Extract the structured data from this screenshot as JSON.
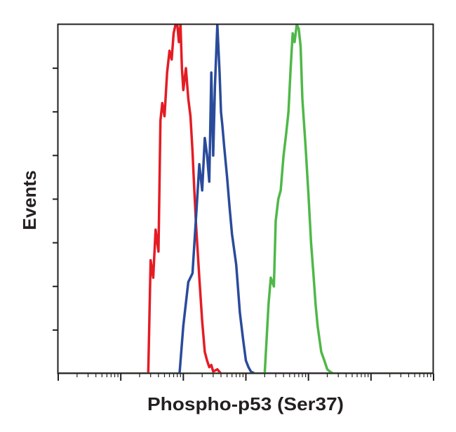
{
  "chart_data": {
    "type": "line",
    "title": "",
    "xlabel": "Phospho-p53 (Ser37)",
    "ylabel": "Events",
    "x_scale": "log",
    "xlim": [
      0.01,
      10000
    ],
    "ylim": [
      0,
      8
    ],
    "grid": false,
    "legend": "none",
    "colors": {
      "axis": "#231f20",
      "background": "#ffffff"
    },
    "series": [
      {
        "color": "#e41c24",
        "x": [
          0.001,
          0.275,
          0.3,
          0.33,
          0.36,
          0.4,
          0.43,
          0.46,
          0.5,
          0.55,
          0.6,
          0.65,
          0.7,
          0.75,
          0.8,
          0.85,
          0.9,
          0.95,
          1.0,
          1.1,
          1.2,
          1.3,
          1.4,
          1.5,
          1.6,
          1.8,
          2.0,
          2.2,
          2.4,
          2.6,
          2.8,
          3.0,
          3.5,
          4.0,
          100000
        ],
        "y": [
          0,
          0,
          2.6,
          2.2,
          3.3,
          2.8,
          5.8,
          6.2,
          5.9,
          6.9,
          7.4,
          7.2,
          7.8,
          8.0,
          8.0,
          7.6,
          8.0,
          7.0,
          6.5,
          7.0,
          6.3,
          5.9,
          5.1,
          4.2,
          3.4,
          2.2,
          1.2,
          0.5,
          0.3,
          0.15,
          0.2,
          0.05,
          0.1,
          0,
          0
        ]
      },
      {
        "color": "#2a4b9b",
        "x": [
          0.001,
          0.87,
          1.0,
          1.2,
          1.4,
          1.6,
          1.8,
          2.0,
          2.2,
          2.4,
          2.6,
          2.8,
          3.0,
          3.2,
          3.5,
          3.8,
          4.0,
          4.2,
          4.5,
          5.0,
          5.5,
          6.0,
          7.0,
          8.0,
          9.0,
          10.0,
          11.0,
          12.0,
          14.0,
          100000
        ],
        "y": [
          0,
          0,
          1.1,
          2.1,
          2.3,
          3.6,
          4.8,
          4.2,
          5.4,
          5.0,
          4.4,
          6.9,
          5.0,
          6.6,
          8.0,
          6.9,
          6.0,
          5.7,
          5.2,
          4.5,
          3.8,
          3.2,
          2.5,
          1.4,
          0.8,
          0.3,
          0.15,
          0.05,
          0,
          0
        ]
      },
      {
        "color": "#4fb848",
        "x": [
          0.001,
          20.0,
          23.0,
          25.0,
          28.0,
          30.0,
          33.0,
          36.0,
          40.0,
          44.0,
          48.0,
          52.0,
          56.0,
          60.0,
          65.0,
          70.0,
          75.0,
          80.0,
          90.0,
          100.0,
          110.0,
          120.0,
          130.0,
          140.0,
          160.0,
          180.0,
          200.0,
          220.0,
          250.0,
          100000
        ],
        "y": [
          0,
          0,
          1.6,
          2.2,
          2.0,
          3.5,
          4.0,
          4.2,
          5.0,
          5.5,
          6.0,
          7.0,
          7.8,
          7.6,
          8.0,
          7.9,
          7.5,
          6.3,
          5.2,
          4.1,
          3.0,
          2.3,
          1.6,
          1.1,
          0.5,
          0.3,
          0.1,
          0.05,
          0,
          0
        ]
      }
    ]
  }
}
